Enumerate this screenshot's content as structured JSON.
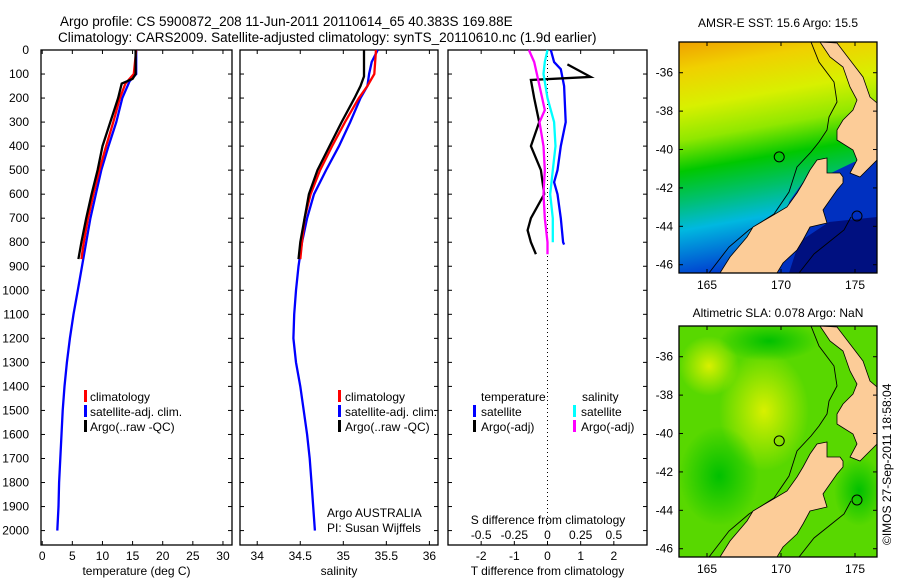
{
  "title": {
    "line1": "Argo profile: CS 5900872_208 11-Jun-2011 20110614_65 40.383S 169.88E",
    "line2": "Climatology: CARS2009. Satellite-adjusted climatology: synTS_20110610.nc (1.9d earlier)"
  },
  "depth_ticks": [
    0,
    100,
    200,
    300,
    400,
    500,
    600,
    700,
    800,
    900,
    1000,
    1100,
    1200,
    1300,
    1400,
    1500,
    1600,
    1700,
    1800,
    1900,
    2000
  ],
  "chart_data": [
    {
      "type": "line",
      "title": "",
      "xlabel": "temperature (deg C)",
      "ylabel": "depth",
      "xlim": [
        -0.2,
        31.5
      ],
      "ylim": [
        2060,
        0
      ],
      "xticks": [
        0,
        5,
        10,
        15,
        20,
        25,
        30
      ],
      "legend": [
        "climatology",
        "satellite-adj. clim.",
        "Argo(..raw -QC)"
      ],
      "legend_placement": "lower-left",
      "series": [
        {
          "name": "satellite-adj. clim.",
          "color": "#0000ff",
          "depth": [
            0,
            100,
            130,
            200,
            300,
            400,
            500,
            600,
            700,
            800,
            900,
            1000,
            1100,
            1200,
            1300,
            1400,
            1500,
            1600,
            1700,
            1800,
            1900,
            2000
          ],
          "values": [
            15.6,
            15.6,
            14.5,
            13.3,
            12.3,
            11.0,
            9.8,
            8.9,
            8.0,
            7.3,
            6.6,
            5.9,
            5.2,
            4.6,
            4.1,
            3.7,
            3.4,
            3.2,
            3.0,
            2.8,
            2.7,
            2.5
          ]
        },
        {
          "name": "climatology",
          "color": "#ff0000",
          "depth": [
            0,
            100,
            140,
            200,
            300,
            400,
            500,
            600,
            700,
            800,
            870
          ],
          "values": [
            15.6,
            15.2,
            13.8,
            12.9,
            11.8,
            10.6,
            9.5,
            8.5,
            7.6,
            6.9,
            6.5
          ]
        },
        {
          "name": "Argo(..raw -QC)",
          "color": "#000000",
          "depth": [
            0,
            100,
            120,
            140,
            200,
            300,
            400,
            500,
            600,
            700,
            800,
            870
          ],
          "values": [
            15.5,
            15.5,
            15.0,
            13.2,
            12.6,
            11.3,
            10.0,
            9.2,
            8.2,
            7.3,
            6.5,
            6.0
          ]
        }
      ]
    },
    {
      "type": "line",
      "title": "",
      "xlabel": "salinity",
      "ylabel": "depth",
      "xlim": [
        33.8,
        36.1
      ],
      "ylim": [
        2060,
        0
      ],
      "xticks": [
        34,
        34.5,
        35,
        35.5,
        36
      ],
      "legend": [
        "climatology",
        "satellite-adj. clim.",
        "Argo(..raw -QC)"
      ],
      "legend_placement": "lower-left",
      "annotation": [
        "Argo AUSTRALIA",
        "PI: Susan Wijffels"
      ],
      "series": [
        {
          "name": "satellite-adj. clim.",
          "color": "#0000ff",
          "depth": [
            0,
            50,
            100,
            150,
            200,
            300,
            400,
            500,
            600,
            700,
            800,
            900,
            1000,
            1100,
            1200,
            1300,
            1400,
            1500,
            1600,
            1700,
            1800,
            1900,
            2000
          ],
          "values": [
            35.4,
            35.33,
            35.3,
            35.28,
            35.2,
            35.08,
            34.95,
            34.8,
            34.66,
            34.58,
            34.52,
            34.48,
            34.45,
            34.43,
            34.42,
            34.45,
            34.5,
            34.54,
            34.58,
            34.61,
            34.63,
            34.65,
            34.67
          ]
        },
        {
          "name": "climatology",
          "color": "#ff0000",
          "depth": [
            0,
            100,
            150,
            200,
            300,
            400,
            500,
            600,
            700,
            800,
            870
          ],
          "values": [
            35.38,
            35.36,
            35.28,
            35.18,
            35.02,
            34.87,
            34.73,
            34.62,
            34.55,
            34.52,
            34.5
          ]
        },
        {
          "name": "Argo(..raw -QC)",
          "color": "#000000",
          "depth": [
            0,
            110,
            150,
            200,
            300,
            400,
            500,
            600,
            700,
            800,
            870
          ],
          "values": [
            35.24,
            35.24,
            35.2,
            35.13,
            34.98,
            34.84,
            34.7,
            34.6,
            34.55,
            34.5,
            34.48
          ]
        }
      ]
    },
    {
      "type": "line",
      "title": "",
      "xlabel": "T difference from climatology",
      "xlabel2": "S difference from climatology",
      "ylabel": "depth",
      "xlim": [
        -3,
        3
      ],
      "xlim_S": [
        -0.75,
        0.75
      ],
      "ylim": [
        2060,
        0
      ],
      "xticks": [
        -2,
        -1,
        0,
        1,
        2
      ],
      "xticks_S": [
        "-0.5",
        "-0.25",
        "0",
        "0.25",
        "0.5"
      ],
      "legend_headers": [
        "temperature",
        "salinity"
      ],
      "legend_placement": "lower-center",
      "series": [
        {
          "name": "satellite",
          "group": "temperature",
          "axis": "T",
          "color": "#0000ff",
          "depth": [
            0,
            50,
            80,
            150,
            300,
            400,
            500,
            550,
            600,
            700,
            800,
            810
          ],
          "values": [
            0.1,
            0.2,
            0.4,
            0.5,
            0.55,
            0.4,
            0.3,
            0.2,
            0.3,
            0.4,
            0.47,
            0.5
          ]
        },
        {
          "name": "Argo(-adj)",
          "group": "temperature",
          "axis": "T",
          "color": "#000000",
          "depth": [
            60,
            112,
            125,
            200,
            300,
            400,
            500,
            600,
            700,
            750,
            800,
            850
          ],
          "values": [
            0.6,
            1.3,
            -0.5,
            -0.4,
            -0.25,
            -0.5,
            -0.2,
            -0.1,
            -0.5,
            -0.6,
            -0.5,
            -0.35
          ]
        },
        {
          "name": "satellite",
          "group": "salinity",
          "axis": "S",
          "color": "#00ffff",
          "depth": [
            0,
            50,
            100,
            200,
            300,
            400,
            500,
            600,
            700,
            800
          ],
          "values": [
            0.0,
            -0.02,
            -0.03,
            0.0,
            0.05,
            0.06,
            0.04,
            0.02,
            0.04,
            0.04
          ]
        },
        {
          "name": "Argo(-adj)",
          "group": "salinity",
          "axis": "S",
          "color": "#ff00ff",
          "depth": [
            0,
            50,
            100,
            200,
            250,
            300,
            400,
            500,
            600,
            700,
            800,
            850
          ],
          "values": [
            -0.14,
            -0.1,
            -0.08,
            -0.04,
            -0.02,
            -0.06,
            -0.03,
            -0.02,
            -0.03,
            -0.02,
            0.0,
            0.0
          ]
        }
      ]
    }
  ],
  "maps": [
    {
      "title": "AMSR-E SST: 15.6 Argo: 15.5",
      "lon_ticks": [
        165,
        170,
        175
      ],
      "lat_ticks": [
        -36,
        -38,
        -40,
        -42,
        -44,
        -46
      ]
    },
    {
      "title": "Altimetric SLA: 0.078 Argo: NaN",
      "lon_ticks": [
        165,
        170,
        175
      ],
      "lat_ticks": [
        -36,
        -38,
        -40,
        -42,
        -44,
        -46
      ]
    }
  ],
  "argo_position": {
    "lat": -40.383,
    "lon": 169.88
  },
  "watermark": "©IMOS 27-Sep-2011 18:58:04"
}
